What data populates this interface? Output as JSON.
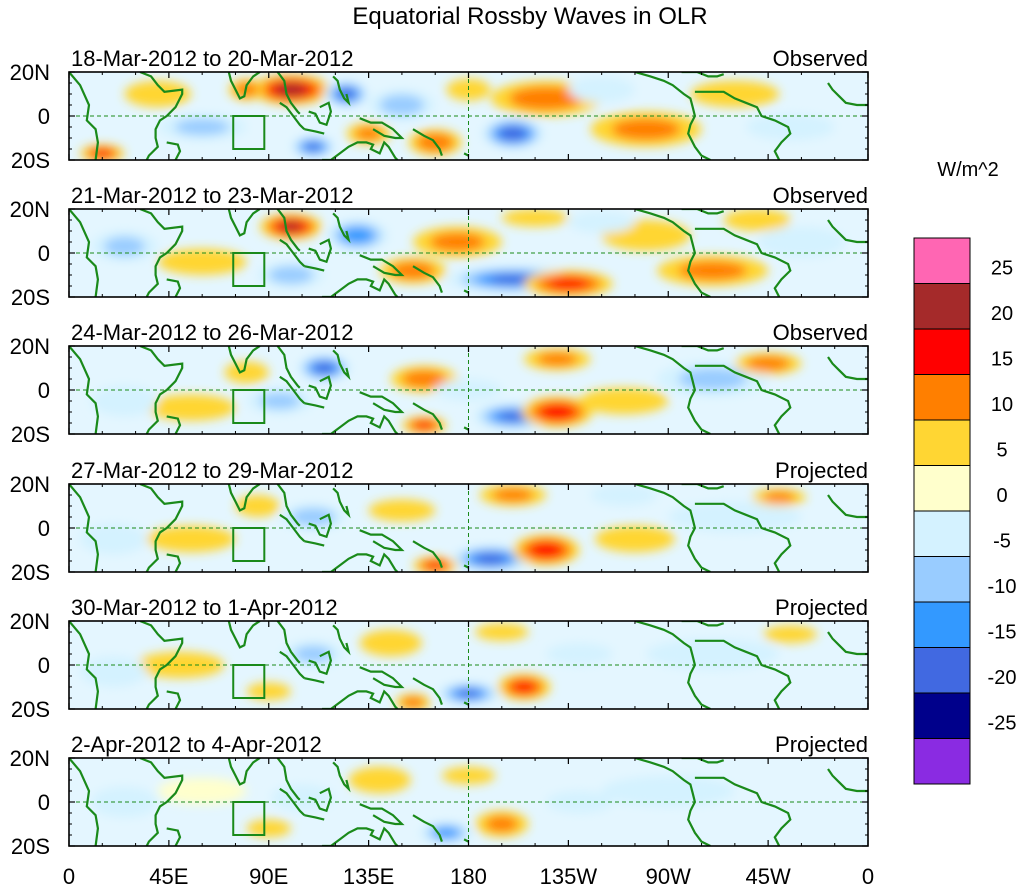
{
  "chart_data": {
    "type": "heatmap",
    "title": "Equatorial Rossby Waves in OLR",
    "units": "W/m^2",
    "x_ticks": [
      "0",
      "45E",
      "90E",
      "135E",
      "180",
      "135W",
      "90W",
      "45W",
      "0"
    ],
    "y_ticks": [
      "20N",
      "0",
      "20S"
    ],
    "xlim": [
      0,
      360
    ],
    "ylim": [
      -20,
      20
    ],
    "colorbar": {
      "levels": [
        "25",
        "20",
        "15",
        "10",
        "5",
        "0",
        "-5",
        "-10",
        "-15",
        "-20",
        "-25"
      ],
      "colors": [
        "#ff66b3",
        "#a52a2a",
        "#ff0000",
        "#ff7f00",
        "#ffd633",
        "#ffffcc",
        "#d4f2ff",
        "#99ccff",
        "#3399ff",
        "#4169e1",
        "#00008b",
        "#8a2be2"
      ]
    },
    "panels": [
      {
        "period": "18-Mar-2012 to 20-Mar-2012",
        "kind": "Observed",
        "features": [
          {
            "lon": 100,
            "lat": 12,
            "rx": 18,
            "ry": 7,
            "value": 22
          },
          {
            "lon": 125,
            "lat": 10,
            "rx": 10,
            "ry": 6,
            "value": -22
          },
          {
            "lon": 110,
            "lat": -14,
            "rx": 10,
            "ry": 5,
            "value": -20
          },
          {
            "lon": 200,
            "lat": -8,
            "rx": 14,
            "ry": 7,
            "value": -24
          },
          {
            "lon": 15,
            "lat": -17,
            "rx": 10,
            "ry": 4,
            "value": 16
          },
          {
            "lon": 215,
            "lat": 8,
            "rx": 25,
            "ry": 8,
            "value": 12
          },
          {
            "lon": 260,
            "lat": -6,
            "rx": 25,
            "ry": 8,
            "value": 10
          },
          {
            "lon": 165,
            "lat": -12,
            "rx": 12,
            "ry": 6,
            "value": 14
          },
          {
            "lon": 150,
            "lat": 5,
            "rx": 15,
            "ry": 7,
            "value": -12
          },
          {
            "lon": 60,
            "lat": -5,
            "rx": 20,
            "ry": 6,
            "value": -10
          },
          {
            "lon": 300,
            "lat": 10,
            "rx": 20,
            "ry": 6,
            "value": 8
          },
          {
            "lon": 325,
            "lat": -5,
            "rx": 20,
            "ry": 6,
            "value": -8
          },
          {
            "lon": 40,
            "lat": 10,
            "rx": 15,
            "ry": 6,
            "value": 6
          },
          {
            "lon": 240,
            "lat": 12,
            "rx": 15,
            "ry": 6,
            "value": -8
          },
          {
            "lon": 180,
            "lat": 12,
            "rx": 10,
            "ry": 5,
            "value": 8
          },
          {
            "lon": 80,
            "lat": 12,
            "rx": 8,
            "ry": 5,
            "value": 12
          },
          {
            "lon": 135,
            "lat": -8,
            "rx": 10,
            "ry": 5,
            "value": 10
          }
        ]
      },
      {
        "period": "21-Mar-2012 to 23-Mar-2012",
        "kind": "Observed",
        "features": [
          {
            "lon": 100,
            "lat": 12,
            "rx": 14,
            "ry": 6,
            "value": 20
          },
          {
            "lon": 130,
            "lat": 8,
            "rx": 14,
            "ry": 7,
            "value": -18
          },
          {
            "lon": 200,
            "lat": -12,
            "rx": 30,
            "ry": 6,
            "value": -20
          },
          {
            "lon": 225,
            "lat": -14,
            "rx": 20,
            "ry": 6,
            "value": 16
          },
          {
            "lon": 175,
            "lat": 5,
            "rx": 20,
            "ry": 7,
            "value": 10
          },
          {
            "lon": 100,
            "lat": -10,
            "rx": 15,
            "ry": 6,
            "value": -12
          },
          {
            "lon": 60,
            "lat": -4,
            "rx": 20,
            "ry": 6,
            "value": 8
          },
          {
            "lon": 260,
            "lat": 8,
            "rx": 20,
            "ry": 7,
            "value": 8
          },
          {
            "lon": 290,
            "lat": -8,
            "rx": 25,
            "ry": 7,
            "value": 10
          },
          {
            "lon": 330,
            "lat": 5,
            "rx": 20,
            "ry": 7,
            "value": -8
          },
          {
            "lon": 25,
            "lat": 3,
            "rx": 15,
            "ry": 7,
            "value": -10
          },
          {
            "lon": 155,
            "lat": -8,
            "rx": 15,
            "ry": 6,
            "value": 12
          },
          {
            "lon": 240,
            "lat": 14,
            "rx": 15,
            "ry": 5,
            "value": -8
          },
          {
            "lon": 310,
            "lat": 15,
            "rx": 15,
            "ry": 5,
            "value": 6
          },
          {
            "lon": 210,
            "lat": 16,
            "rx": 15,
            "ry": 4,
            "value": 8
          }
        ]
      },
      {
        "period": "24-Mar-2012 to 26-Mar-2012",
        "kind": "Observed",
        "features": [
          {
            "lon": 115,
            "lat": 10,
            "rx": 12,
            "ry": 6,
            "value": -22
          },
          {
            "lon": 200,
            "lat": -12,
            "rx": 18,
            "ry": 6,
            "value": -20
          },
          {
            "lon": 220,
            "lat": -10,
            "rx": 16,
            "ry": 7,
            "value": 18
          },
          {
            "lon": 160,
            "lat": -16,
            "rx": 10,
            "ry": 4,
            "value": 16
          },
          {
            "lon": 160,
            "lat": 5,
            "rx": 15,
            "ry": 6,
            "value": 12
          },
          {
            "lon": 220,
            "lat": 14,
            "rx": 15,
            "ry": 5,
            "value": 10
          },
          {
            "lon": 95,
            "lat": -5,
            "rx": 15,
            "ry": 6,
            "value": -10
          },
          {
            "lon": 55,
            "lat": -8,
            "rx": 20,
            "ry": 6,
            "value": 8
          },
          {
            "lon": 290,
            "lat": 5,
            "rx": 25,
            "ry": 8,
            "value": -10
          },
          {
            "lon": 315,
            "lat": 12,
            "rx": 15,
            "ry": 5,
            "value": 12
          },
          {
            "lon": 250,
            "lat": -5,
            "rx": 20,
            "ry": 6,
            "value": 8
          },
          {
            "lon": 25,
            "lat": -5,
            "rx": 15,
            "ry": 7,
            "value": -8
          },
          {
            "lon": 180,
            "lat": 0,
            "rx": 15,
            "ry": 5,
            "value": -8
          },
          {
            "lon": 80,
            "lat": 8,
            "rx": 10,
            "ry": 5,
            "value": 8
          }
        ]
      },
      {
        "period": "27-Mar-2012 to 29-Mar-2012",
        "kind": "Projected",
        "features": [
          {
            "lon": 190,
            "lat": -14,
            "rx": 18,
            "ry": 6,
            "value": -22
          },
          {
            "lon": 215,
            "lat": -10,
            "rx": 15,
            "ry": 7,
            "value": 18
          },
          {
            "lon": 165,
            "lat": -17,
            "rx": 10,
            "ry": 4,
            "value": 16
          },
          {
            "lon": 200,
            "lat": 15,
            "rx": 15,
            "ry": 5,
            "value": 10
          },
          {
            "lon": 110,
            "lat": 5,
            "rx": 15,
            "ry": 6,
            "value": -12
          },
          {
            "lon": 150,
            "lat": 8,
            "rx": 15,
            "ry": 5,
            "value": 8
          },
          {
            "lon": 55,
            "lat": -5,
            "rx": 20,
            "ry": 6,
            "value": 6
          },
          {
            "lon": 300,
            "lat": 5,
            "rx": 30,
            "ry": 7,
            "value": -8
          },
          {
            "lon": 320,
            "lat": 14,
            "rx": 12,
            "ry": 4,
            "value": 10
          },
          {
            "lon": 255,
            "lat": -5,
            "rx": 18,
            "ry": 6,
            "value": 6
          },
          {
            "lon": 20,
            "lat": -5,
            "rx": 15,
            "ry": 7,
            "value": -7
          },
          {
            "lon": 250,
            "lat": 15,
            "rx": 15,
            "ry": 5,
            "value": -7
          },
          {
            "lon": 85,
            "lat": 10,
            "rx": 10,
            "ry": 5,
            "value": 7
          }
        ]
      },
      {
        "period": "30-Mar-2012 to 1-Apr-2012",
        "kind": "Projected",
        "features": [
          {
            "lon": 180,
            "lat": -13,
            "rx": 14,
            "ry": 5,
            "value": -20
          },
          {
            "lon": 205,
            "lat": -10,
            "rx": 12,
            "ry": 6,
            "value": 16
          },
          {
            "lon": 155,
            "lat": -17,
            "rx": 8,
            "ry": 4,
            "value": 12
          },
          {
            "lon": 110,
            "lat": 5,
            "rx": 14,
            "ry": 6,
            "value": -10
          },
          {
            "lon": 145,
            "lat": 10,
            "rx": 14,
            "ry": 6,
            "value": 8
          },
          {
            "lon": 195,
            "lat": 15,
            "rx": 12,
            "ry": 4,
            "value": 8
          },
          {
            "lon": 50,
            "lat": 0,
            "rx": 20,
            "ry": 6,
            "value": 5
          },
          {
            "lon": 290,
            "lat": 5,
            "rx": 30,
            "ry": 7,
            "value": -6
          },
          {
            "lon": 230,
            "lat": 5,
            "rx": 15,
            "ry": 5,
            "value": -6
          },
          {
            "lon": 20,
            "lat": -3,
            "rx": 15,
            "ry": 7,
            "value": -6
          },
          {
            "lon": 325,
            "lat": 14,
            "rx": 12,
            "ry": 4,
            "value": 6
          },
          {
            "lon": 90,
            "lat": -12,
            "rx": 10,
            "ry": 4,
            "value": 7
          }
        ]
      },
      {
        "period": "2-Apr-2012 to 4-Apr-2012",
        "kind": "Projected",
        "features": [
          {
            "lon": 170,
            "lat": -14,
            "rx": 12,
            "ry": 5,
            "value": -16
          },
          {
            "lon": 195,
            "lat": -10,
            "rx": 12,
            "ry": 6,
            "value": 10
          },
          {
            "lon": 105,
            "lat": 2,
            "rx": 14,
            "ry": 6,
            "value": -8
          },
          {
            "lon": 140,
            "lat": 10,
            "rx": 14,
            "ry": 6,
            "value": 6
          },
          {
            "lon": 180,
            "lat": 12,
            "rx": 12,
            "ry": 4,
            "value": 6
          },
          {
            "lon": 60,
            "lat": 5,
            "rx": 20,
            "ry": 6,
            "value": 4
          },
          {
            "lon": 270,
            "lat": 5,
            "rx": 30,
            "ry": 7,
            "value": -5
          },
          {
            "lon": 25,
            "lat": 0,
            "rx": 15,
            "ry": 7,
            "value": -5
          },
          {
            "lon": 230,
            "lat": 0,
            "rx": 15,
            "ry": 5,
            "value": -5
          },
          {
            "lon": 90,
            "lat": -12,
            "rx": 10,
            "ry": 4,
            "value": 5
          }
        ]
      }
    ]
  }
}
